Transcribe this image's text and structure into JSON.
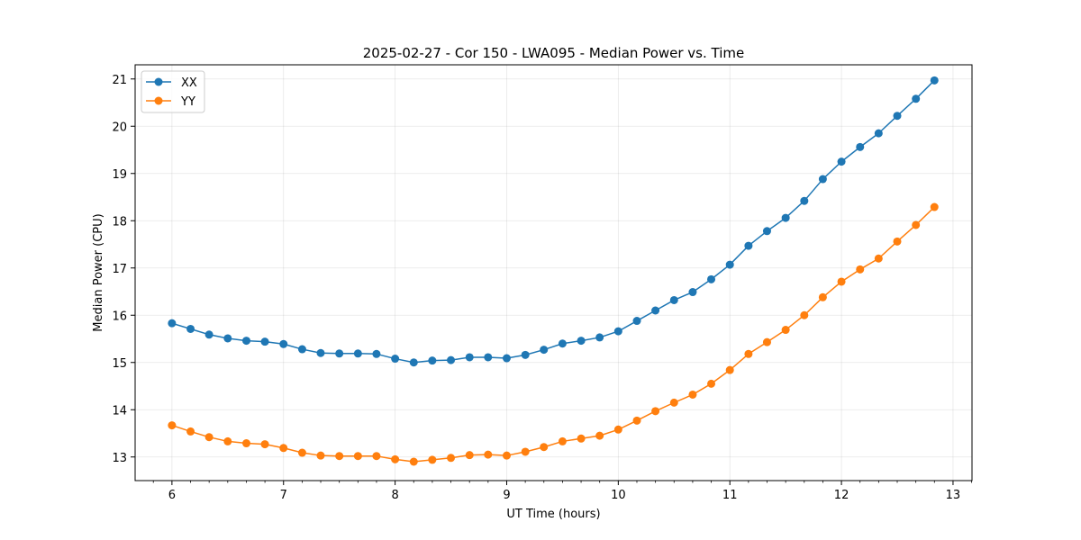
{
  "chart_data": {
    "type": "line",
    "title": "2025-02-27 - Cor 150 - LWA095 - Median Power vs. Time",
    "xlabel": "UT Time (hours)",
    "ylabel": "Median Power (CPU)",
    "xlim": [
      5.67,
      13.17
    ],
    "ylim": [
      12.5,
      21.3
    ],
    "xticks": [
      6,
      7,
      8,
      9,
      10,
      11,
      12,
      13
    ],
    "xtick_labels": [
      "6",
      "7",
      "8",
      "9",
      "10",
      "11",
      "12",
      "13"
    ],
    "yticks": [
      13,
      14,
      15,
      16,
      17,
      18,
      19,
      20,
      21
    ],
    "ytick_labels": [
      "13",
      "14",
      "15",
      "16",
      "17",
      "18",
      "19",
      "20",
      "21"
    ],
    "grid": true,
    "legend": "top-left",
    "x": [
      6.0,
      6.167,
      6.333,
      6.5,
      6.667,
      6.833,
      7.0,
      7.167,
      7.333,
      7.5,
      7.667,
      7.833,
      8.0,
      8.167,
      8.333,
      8.5,
      8.667,
      8.833,
      9.0,
      9.167,
      9.333,
      9.5,
      9.667,
      9.833,
      10.0,
      10.167,
      10.333,
      10.5,
      10.667,
      10.833,
      11.0,
      11.167,
      11.333,
      11.5,
      11.667,
      11.833,
      12.0,
      12.167,
      12.333,
      12.5,
      12.667,
      12.833
    ],
    "series": [
      {
        "name": "XX",
        "color": "#1f77b4",
        "values": [
          15.83,
          15.71,
          15.59,
          15.51,
          15.46,
          15.44,
          15.39,
          15.28,
          15.2,
          15.19,
          15.19,
          15.18,
          15.08,
          15.0,
          15.04,
          15.05,
          15.11,
          15.11,
          15.09,
          15.16,
          15.27,
          15.4,
          15.46,
          15.53,
          15.66,
          15.88,
          16.1,
          16.32,
          16.49,
          16.76,
          17.07,
          17.47,
          17.78,
          18.06,
          18.42,
          18.88,
          19.25,
          19.56,
          19.85,
          20.22,
          20.58,
          20.97
        ]
      },
      {
        "name": "YY",
        "color": "#ff7f0e",
        "values": [
          13.67,
          13.54,
          13.42,
          13.33,
          13.29,
          13.27,
          13.19,
          13.09,
          13.03,
          13.02,
          13.02,
          13.02,
          12.95,
          12.9,
          12.94,
          12.98,
          13.04,
          13.05,
          13.03,
          13.11,
          13.21,
          13.33,
          13.39,
          13.45,
          13.58,
          13.77,
          13.97,
          14.15,
          14.32,
          14.55,
          14.84,
          15.18,
          15.43,
          15.69,
          16.0,
          16.38,
          16.71,
          16.97,
          17.2,
          17.56,
          17.91,
          18.29
        ]
      }
    ]
  }
}
